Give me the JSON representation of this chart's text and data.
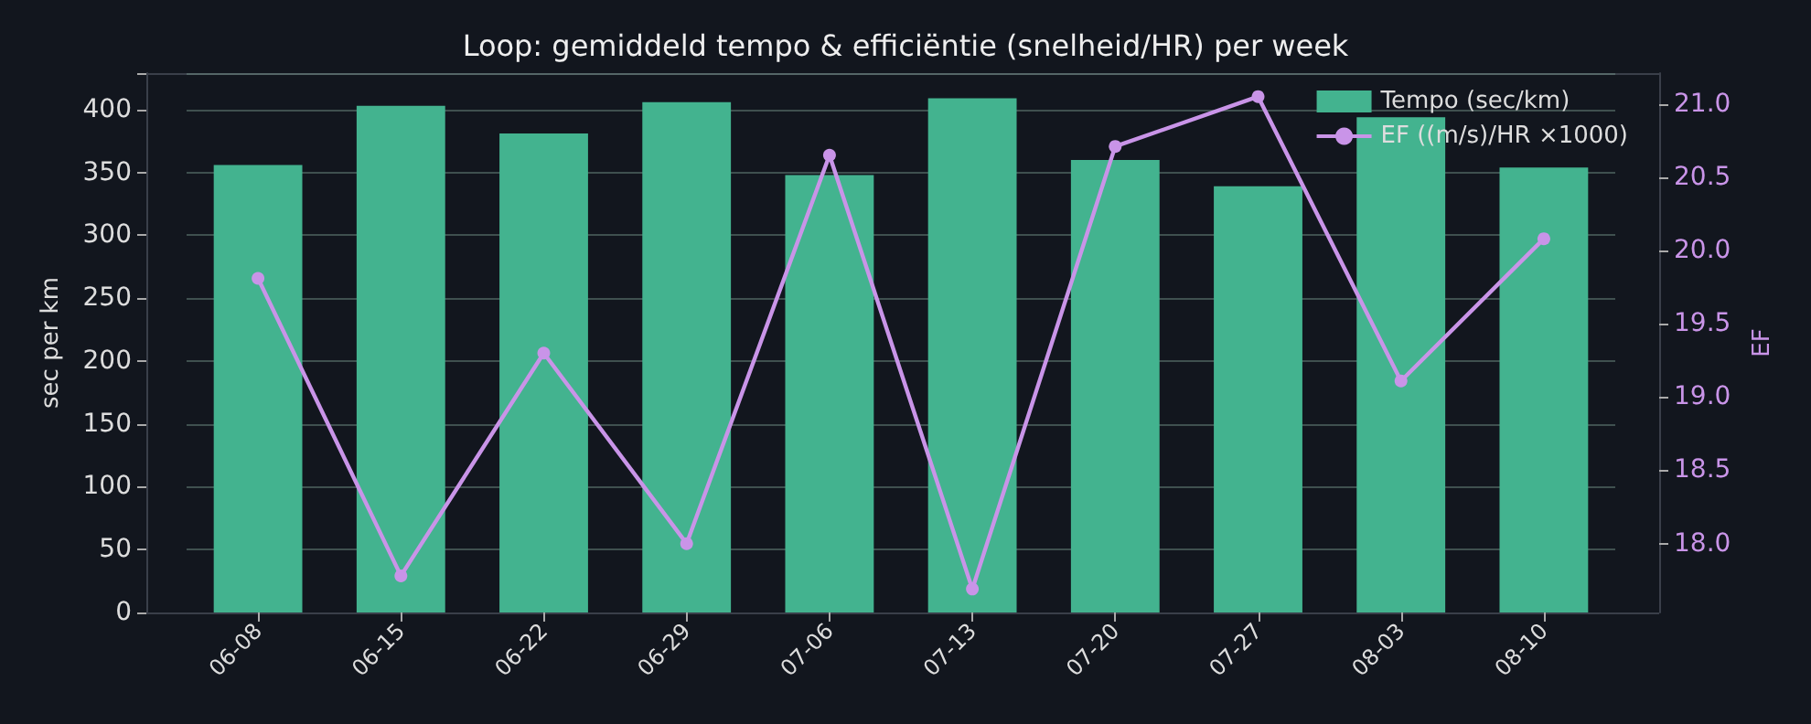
{
  "chart_data": {
    "type": "bar",
    "title": "Loop: gemiddeld tempo & efficiëntie (snelheid/HR) per week",
    "categories": [
      "06-08",
      "06-15",
      "06-22",
      "06-29",
      "07-06",
      "07-13",
      "07-20",
      "07-27",
      "08-03",
      "08-10"
    ],
    "series": [
      {
        "name": "Tempo (sec/km)",
        "color": "#43b38f",
        "values": [
          356,
          403,
          381,
          406,
          348,
          409,
          360,
          339,
          394,
          354
        ]
      },
      {
        "name": "EF ((m/s)/HR ×1000)",
        "type": "line",
        "axis": "y2",
        "color": "#c994e8",
        "marker": "circle",
        "values": [
          19.81,
          17.78,
          19.3,
          18.0,
          20.65,
          17.69,
          20.71,
          21.05,
          19.11,
          20.08
        ]
      }
    ],
    "ylabel": "sec per km",
    "y2label": "EF",
    "ylim": [
      0,
      429
    ],
    "yticks": [
      0,
      50,
      100,
      150,
      200,
      250,
      300,
      350,
      400
    ],
    "y2lim": [
      17.53,
      21.21
    ],
    "y2ticks": [
      {
        "value": 18,
        "label": "18.0"
      },
      {
        "value": 18.5,
        "label": "18.5"
      },
      {
        "value": 19,
        "label": "19.0"
      },
      {
        "value": 19.5,
        "label": "19.5"
      },
      {
        "value": 20,
        "label": "20.0"
      },
      {
        "value": 20.5,
        "label": "20.5"
      },
      {
        "value": 21,
        "label": "21.0"
      }
    ],
    "grid": "y",
    "legend": "top right"
  }
}
